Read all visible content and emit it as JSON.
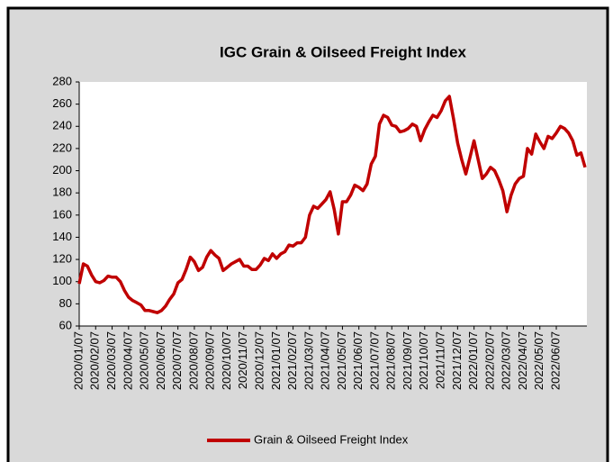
{
  "chart_data": {
    "type": "line",
    "title": "IGC Grain & Oilseed Freight Index",
    "categories": [
      "2020/01/07",
      null,
      null,
      null,
      "2020/02/07",
      null,
      null,
      null,
      "2020/03/07",
      null,
      null,
      null,
      "2020/04/07",
      null,
      null,
      null,
      "2020/05/07",
      null,
      null,
      null,
      "2020/06/07",
      null,
      null,
      null,
      "2020/07/07",
      null,
      null,
      null,
      "2020/08/07",
      null,
      null,
      null,
      "2020/09/07",
      null,
      null,
      null,
      "2020/10/07",
      null,
      null,
      null,
      "2020/11/07",
      null,
      null,
      null,
      "2020/12/07",
      null,
      null,
      null,
      "2021/01/07",
      null,
      null,
      null,
      "2021/02/07",
      null,
      null,
      null,
      "2021/03/07",
      null,
      null,
      null,
      "2021/04/07",
      null,
      null,
      null,
      "2021/05/07",
      null,
      null,
      null,
      "2021/06/07",
      null,
      null,
      null,
      "2021/07/07",
      null,
      null,
      null,
      "2021/08/07",
      null,
      null,
      null,
      "2021/09/07",
      null,
      null,
      null,
      "2021/10/07",
      null,
      null,
      null,
      "2021/11/07",
      null,
      null,
      null,
      "2021/12/07",
      null,
      null,
      null,
      "2022/01/07",
      null,
      null,
      null,
      "2022/02/07",
      null,
      null,
      null,
      "2022/03/07",
      null,
      null,
      null,
      "2022/04/07",
      null,
      null,
      null,
      "2022/05/07",
      null,
      null,
      null,
      "2022/06/07",
      null,
      null,
      null,
      null,
      null,
      null,
      null
    ],
    "series": [
      {
        "name": "Grain & Oilseed Freight Index",
        "color": "#c00000",
        "values": [
          98,
          116,
          114,
          106,
          100,
          99,
          101,
          105,
          104,
          104,
          100,
          92,
          86,
          83,
          81,
          79,
          74,
          74,
          73,
          72,
          74,
          78,
          84,
          89,
          99,
          102,
          111,
          122,
          118,
          110,
          113,
          122,
          128,
          124,
          121,
          110,
          113,
          116,
          118,
          120,
          114,
          114,
          111,
          111,
          115,
          121,
          119,
          125,
          121,
          125,
          127,
          133,
          132,
          135,
          135,
          140,
          160,
          168,
          166,
          170,
          174,
          181,
          165,
          143,
          172,
          172,
          178,
          187,
          185,
          182,
          188,
          206,
          213,
          242,
          250,
          248,
          241,
          240,
          235,
          236,
          238,
          242,
          240,
          227,
          237,
          244,
          250,
          248,
          254,
          263,
          267,
          247,
          225,
          210,
          197,
          212,
          227,
          210,
          193,
          197,
          203,
          200,
          192,
          182,
          163,
          178,
          188,
          193,
          195,
          220,
          215,
          233,
          226,
          220,
          231,
          229,
          234,
          240,
          238,
          234,
          227,
          214,
          216,
          203
        ]
      }
    ],
    "ylim": [
      60,
      280
    ],
    "yticks": [
      60,
      80,
      100,
      120,
      140,
      160,
      180,
      200,
      220,
      240,
      260,
      280
    ],
    "legend": "bottom"
  }
}
